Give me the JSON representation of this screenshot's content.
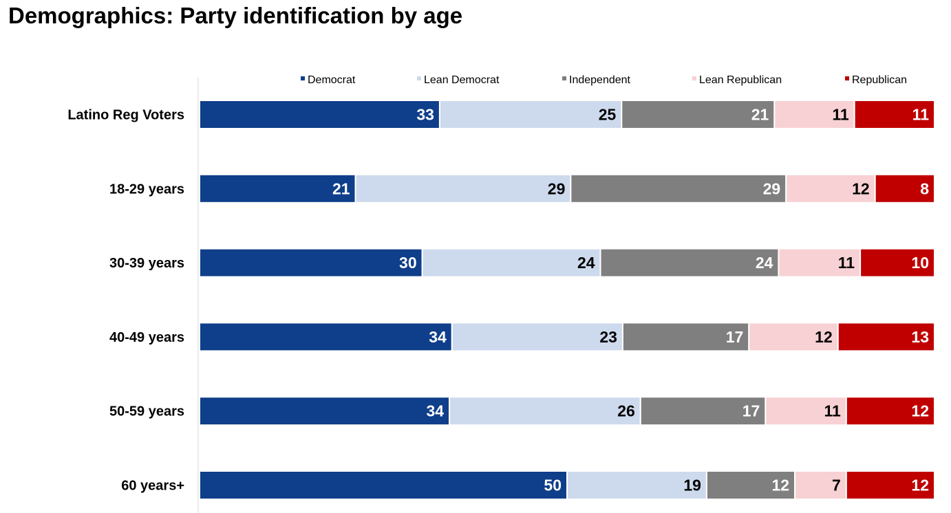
{
  "title": "Demographics: Party identification by age",
  "chart_data": {
    "type": "bar",
    "orientation": "horizontal",
    "stacked": true,
    "title": "Demographics: Party identification by age",
    "legend_position": "top",
    "categories": [
      "Latino Reg Voters",
      "18-29 years",
      "30-39 years",
      "40-49 years",
      "50-59 years",
      "60 years+"
    ],
    "series": [
      {
        "name": "Democrat",
        "color": "#0f3e8a",
        "label_color": "#ffffff",
        "values": [
          33,
          21,
          30,
          34,
          34,
          50
        ]
      },
      {
        "name": "Lean Democrat",
        "color": "#cdd9ec",
        "label_color": "#000000",
        "values": [
          25,
          29,
          24,
          23,
          26,
          19
        ]
      },
      {
        "name": "Independent",
        "color": "#7f7f7f",
        "label_color": "#ffffff",
        "values": [
          21,
          29,
          24,
          17,
          17,
          12
        ]
      },
      {
        "name": "Lean Republican",
        "color": "#f7d1d3",
        "label_color": "#000000",
        "values": [
          11,
          12,
          11,
          12,
          11,
          7
        ]
      },
      {
        "name": "Republican",
        "color": "#c00000",
        "label_color": "#ffffff",
        "values": [
          11,
          8,
          10,
          13,
          12,
          12
        ]
      }
    ]
  }
}
